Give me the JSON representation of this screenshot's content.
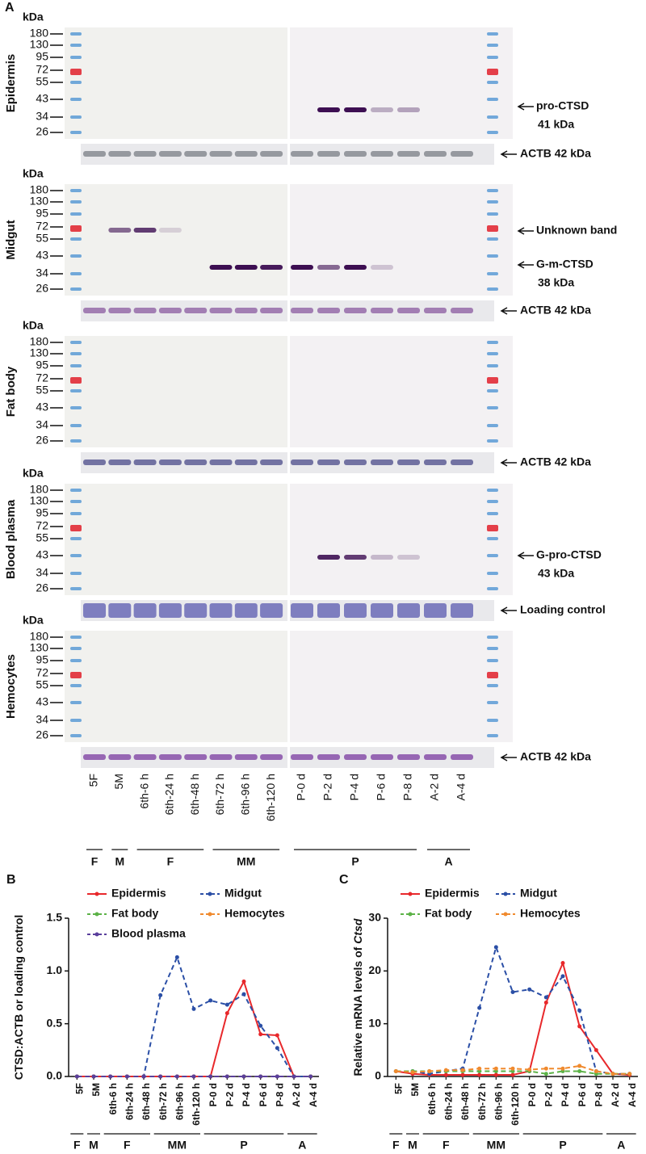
{
  "panel_a": {
    "label": "A",
    "lanes": [
      "5F",
      "5M",
      "6th-6 h",
      "6th-24 h",
      "6th-48 h",
      "6th-72 h",
      "6th-96 h",
      "6th-120 h",
      "P-0 d",
      "P-2 d",
      "P-4 d",
      "P-6 d",
      "P-8 d",
      "A-2 d",
      "A-4 d"
    ],
    "groups": [
      "F",
      "M",
      "F",
      "MM",
      "P",
      "A"
    ],
    "blots": [
      {
        "tissue": "Epidermis",
        "unit": "kDa",
        "markers": [
          "180",
          "130",
          "95",
          "72",
          "55",
          "43",
          "34",
          "26"
        ],
        "annotations": [
          "pro-CTSD",
          "41 kDa"
        ],
        "control": "ACTB 42 kDa"
      },
      {
        "tissue": "Midgut",
        "unit": "kDa",
        "markers": [
          "180",
          "130",
          "95",
          "72",
          "55",
          "43",
          "34",
          "26"
        ],
        "annotations": [
          "Unknown band",
          "G-m-CTSD",
          "38 kDa"
        ],
        "control": "ACTB 42 kDa"
      },
      {
        "tissue": "Fat body",
        "unit": "kDa",
        "markers": [
          "180",
          "130",
          "95",
          "72",
          "55",
          "43",
          "34",
          "26"
        ],
        "annotations": [],
        "control": "ACTB 42 kDa"
      },
      {
        "tissue": "Blood plasma",
        "unit": "kDa",
        "markers": [
          "180",
          "130",
          "95",
          "72",
          "55",
          "43",
          "34",
          "26"
        ],
        "annotations": [
          "G-pro-CTSD",
          "43 kDa"
        ],
        "control": "Loading control"
      },
      {
        "tissue": "Hemocytes",
        "unit": "kDa",
        "markers": [
          "180",
          "130",
          "95",
          "72",
          "55",
          "43",
          "34",
          "26"
        ],
        "annotations": [],
        "control": "ACTB 42 kDa"
      }
    ]
  },
  "chart_data": [
    {
      "type": "line",
      "panel": "B",
      "ylabel": "CTSD:ACTB or loading control",
      "categories": [
        "5F",
        "5M",
        "6th-6 h",
        "6th-24 h",
        "6th-48 h",
        "6th-72 h",
        "6th-96 h",
        "6th-120 h",
        "P-0 d",
        "P-2 d",
        "P-4 d",
        "P-6 d",
        "P-8 d",
        "A-2 d",
        "A-4 d"
      ],
      "groups": [
        "F",
        "M",
        "F",
        "MM",
        "P",
        "A"
      ],
      "ylim": [
        0,
        1.5
      ],
      "yticks": [
        {
          "value": 0,
          "label": "0.0"
        },
        {
          "value": 0.5,
          "label": "0.5"
        },
        {
          "value": 1,
          "label": "1.0"
        },
        {
          "value": 1.5,
          "label": "1.5"
        }
      ],
      "series": [
        {
          "name": "Epidermis",
          "color": "#e8282b",
          "values": [
            0,
            0,
            0,
            0,
            0,
            0,
            0,
            0,
            0,
            0.6,
            0.9,
            0.4,
            0.39,
            0,
            0
          ]
        },
        {
          "name": "Midgut",
          "color": "#2b4fa6",
          "values": [
            0,
            0,
            0,
            0,
            0,
            0.77,
            1.13,
            0.64,
            0.72,
            0.68,
            0.78,
            0.48,
            0.27,
            0,
            0
          ]
        },
        {
          "name": "Fat body",
          "color": "#5cb247",
          "values": [
            0,
            0,
            0,
            0,
            0,
            0,
            0,
            0,
            0,
            0,
            0,
            0,
            0,
            0,
            0
          ]
        },
        {
          "name": "Hemocytes",
          "color": "#f08a2e",
          "values": [
            0,
            0,
            0,
            0,
            0,
            0,
            0,
            0,
            0,
            0,
            0,
            0,
            0,
            0,
            0
          ]
        },
        {
          "name": "Blood plasma",
          "color": "#5a3f9c",
          "values": [
            0,
            0,
            0,
            0,
            0,
            0,
            0,
            0,
            0,
            0,
            0,
            0,
            0,
            0,
            0
          ]
        }
      ]
    },
    {
      "type": "line",
      "panel": "C",
      "ylabel": "Relative mRNA levels of",
      "ylabel_italic": "Ctsd",
      "categories": [
        "5F",
        "5M",
        "6th-6 h",
        "6th-24 h",
        "6th-48 h",
        "6th-72 h",
        "6th-96 h",
        "6th-120 h",
        "P-0 d",
        "P-2 d",
        "P-4 d",
        "P-6 d",
        "P-8 d",
        "A-2 d",
        "A-4 d"
      ],
      "groups": [
        "F",
        "M",
        "F",
        "MM",
        "P",
        "A"
      ],
      "ylim": [
        0,
        30
      ],
      "yticks": [
        0,
        10,
        20,
        30
      ],
      "series": [
        {
          "name": "Epidermis",
          "color": "#e8282b",
          "values": [
            1,
            0.5,
            0.3,
            0.3,
            0.3,
            0.3,
            0.3,
            0.3,
            1,
            14,
            21.5,
            9.5,
            5,
            0.5,
            0.3
          ]
        },
        {
          "name": "Midgut",
          "color": "#2b4fa6",
          "values": [
            1,
            1,
            0.5,
            1,
            1.5,
            13,
            24.5,
            16,
            16.5,
            15,
            19,
            12.5,
            1,
            0.5,
            0.5
          ]
        },
        {
          "name": "Fat body",
          "color": "#5cb247",
          "values": [
            1,
            1,
            1,
            1,
            1,
            1,
            1,
            1,
            1,
            0.5,
            1,
            1,
            0.5,
            0.5,
            0.5
          ]
        },
        {
          "name": "Hemocytes",
          "color": "#f08a2e",
          "values": [
            1,
            0.8,
            1,
            1.2,
            1.2,
            1.5,
            1.5,
            1.5,
            1.3,
            1.5,
            1.5,
            2,
            1,
            0.5,
            0.5
          ]
        }
      ]
    }
  ]
}
